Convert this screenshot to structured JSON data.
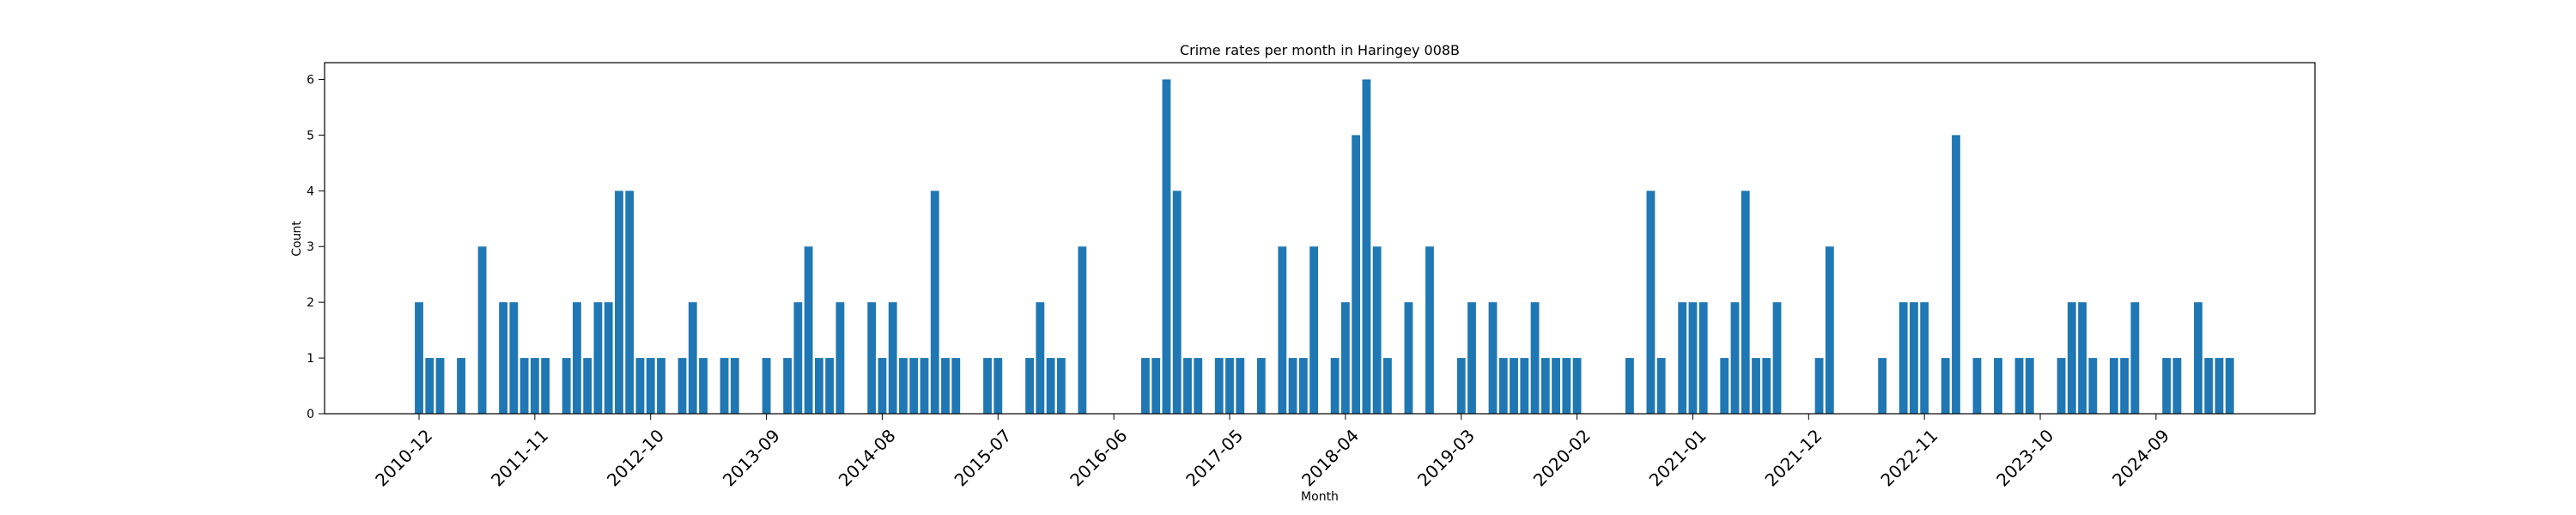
{
  "chart_data": {
    "type": "bar",
    "title": "Crime rates per month in Haringey 008B",
    "xlabel": "Month",
    "ylabel": "Count",
    "ylim": [
      0,
      6.3
    ],
    "yticks": [
      0,
      1,
      2,
      3,
      4,
      5,
      6
    ],
    "xtick_labels": [
      "2010-12",
      "2011-11",
      "2012-10",
      "2013-09",
      "2014-08",
      "2015-07",
      "2016-06",
      "2017-05",
      "2018-04",
      "2019-03",
      "2020-02",
      "2021-01",
      "2021-12",
      "2022-11",
      "2023-10",
      "2024-09"
    ],
    "bar_color": "#1f77b4",
    "grid": false,
    "categories": [
      "2010-12",
      "2011-01",
      "2011-02",
      "2011-03",
      "2011-04",
      "2011-05",
      "2011-06",
      "2011-07",
      "2011-08",
      "2011-09",
      "2011-10",
      "2011-11",
      "2011-12",
      "2012-01",
      "2012-02",
      "2012-03",
      "2012-04",
      "2012-05",
      "2012-06",
      "2012-07",
      "2012-08",
      "2012-09",
      "2012-10",
      "2012-11",
      "2012-12",
      "2013-01",
      "2013-02",
      "2013-03",
      "2013-04",
      "2013-05",
      "2013-06",
      "2013-07",
      "2013-08",
      "2013-09",
      "2013-10",
      "2013-11",
      "2013-12",
      "2014-01",
      "2014-02",
      "2014-03",
      "2014-04",
      "2014-05",
      "2014-06",
      "2014-07",
      "2014-08",
      "2014-09",
      "2014-10",
      "2014-11",
      "2014-12",
      "2015-01",
      "2015-02",
      "2015-03",
      "2015-04",
      "2015-05",
      "2015-06",
      "2015-07",
      "2015-08",
      "2015-09",
      "2015-10",
      "2015-11",
      "2015-12",
      "2016-01",
      "2016-02",
      "2016-03",
      "2016-04",
      "2016-05",
      "2016-06",
      "2016-07",
      "2016-08",
      "2016-09",
      "2016-10",
      "2016-11",
      "2016-12",
      "2017-01",
      "2017-02",
      "2017-03",
      "2017-04",
      "2017-05",
      "2017-06",
      "2017-07",
      "2017-08",
      "2017-09",
      "2017-10",
      "2017-11",
      "2017-12",
      "2018-01",
      "2018-02",
      "2018-03",
      "2018-04",
      "2018-05",
      "2018-06",
      "2018-07",
      "2018-08",
      "2018-09",
      "2018-10",
      "2018-11",
      "2018-12",
      "2019-01",
      "2019-02",
      "2019-03",
      "2019-04",
      "2019-05",
      "2019-06",
      "2019-07",
      "2019-08",
      "2019-09",
      "2019-10",
      "2019-11",
      "2019-12",
      "2020-01",
      "2020-02",
      "2020-03",
      "2020-04",
      "2020-05",
      "2020-06",
      "2020-07",
      "2020-08",
      "2020-09",
      "2020-10",
      "2020-11",
      "2020-12",
      "2021-01",
      "2021-02",
      "2021-03",
      "2021-04",
      "2021-05",
      "2021-06",
      "2021-07",
      "2021-08",
      "2021-09",
      "2021-10",
      "2021-11",
      "2021-12",
      "2022-01",
      "2022-02",
      "2022-03",
      "2022-04",
      "2022-05",
      "2022-06",
      "2022-07",
      "2022-08",
      "2022-09",
      "2022-10",
      "2022-11",
      "2022-12",
      "2023-01",
      "2023-02",
      "2023-03",
      "2023-04",
      "2023-05",
      "2023-06",
      "2023-07",
      "2023-08",
      "2023-09",
      "2023-10",
      "2023-11",
      "2023-12",
      "2024-01",
      "2024-02",
      "2024-03",
      "2024-04",
      "2024-05",
      "2024-06",
      "2024-07",
      "2024-08",
      "2024-09",
      "2024-10",
      "2024-11",
      "2024-12",
      "2025-01",
      "2025-02",
      "2025-03",
      "2025-04"
    ],
    "values": [
      2,
      1,
      1,
      0,
      1,
      0,
      3,
      0,
      2,
      2,
      1,
      1,
      1,
      0,
      1,
      2,
      1,
      2,
      2,
      4,
      4,
      1,
      1,
      1,
      0,
      1,
      2,
      1,
      0,
      1,
      1,
      0,
      0,
      1,
      0,
      1,
      2,
      3,
      1,
      1,
      2,
      0,
      0,
      2,
      1,
      2,
      1,
      1,
      1,
      4,
      1,
      1,
      0,
      0,
      1,
      1,
      0,
      0,
      1,
      2,
      1,
      1,
      0,
      3,
      0,
      0,
      0,
      0,
      0,
      1,
      1,
      6,
      4,
      1,
      1,
      0,
      1,
      1,
      1,
      0,
      1,
      0,
      3,
      1,
      1,
      3,
      0,
      1,
      2,
      5,
      6,
      3,
      1,
      0,
      2,
      0,
      3,
      0,
      0,
      1,
      2,
      0,
      2,
      1,
      1,
      1,
      2,
      1,
      1,
      1,
      1,
      0,
      0,
      0,
      0,
      1,
      0,
      4,
      1,
      0,
      2,
      2,
      2,
      0,
      1,
      2,
      4,
      1,
      1,
      2,
      0,
      0,
      0,
      1,
      3,
      0,
      0,
      0,
      0,
      1,
      0,
      2,
      2,
      2,
      0,
      1,
      5,
      0,
      1,
      0,
      1,
      0,
      1,
      1,
      0,
      0,
      1,
      2,
      2,
      1,
      0,
      1,
      1,
      2,
      0,
      0,
      1,
      1,
      0,
      2,
      1,
      1,
      1
    ]
  }
}
